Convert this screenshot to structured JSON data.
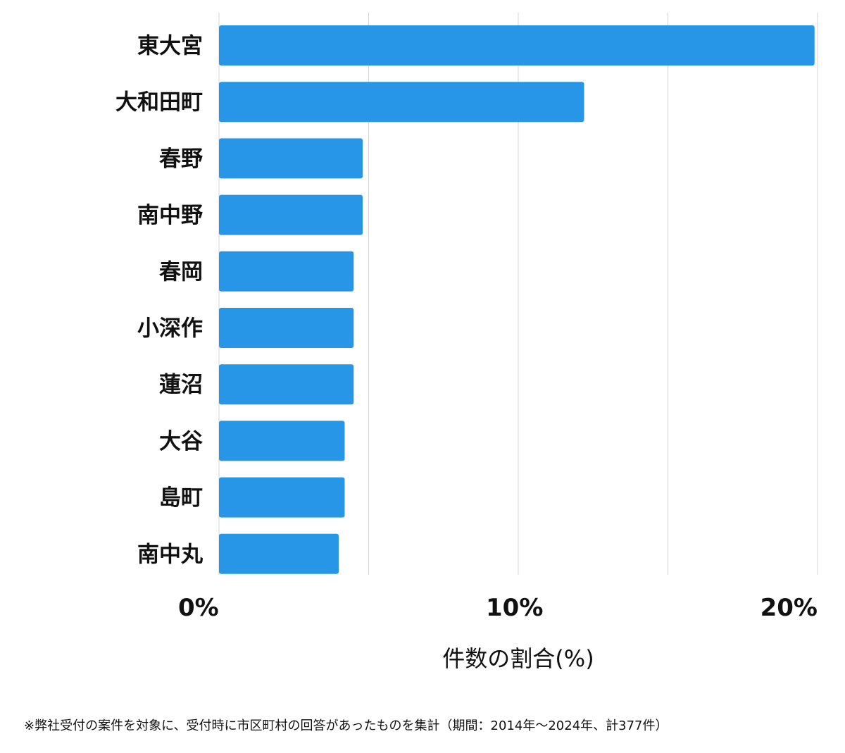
{
  "chart_data": {
    "type": "bar",
    "orientation": "horizontal",
    "categories": [
      "東大宮",
      "大和田町",
      "春野",
      "南中野",
      "春岡",
      "小深作",
      "蓮沼",
      "大谷",
      "島町",
      "南中丸"
    ],
    "values": [
      19.9,
      12.2,
      4.8,
      4.8,
      4.5,
      4.5,
      4.5,
      4.2,
      4.2,
      4.0
    ],
    "xlabel": "件数の割合(%)",
    "xlim": [
      0,
      20
    ],
    "xtick_values": [
      0,
      5,
      10,
      15,
      20
    ],
    "xtick_labels": [
      "0%",
      "",
      "10%",
      "",
      "20%"
    ],
    "grid": true,
    "bar_color": "#2896e6"
  },
  "footnote": "※弊社受付の案件を対象に、受付時に市区町村の回答があったものを集計（期間：2014年〜2024年、計377件）"
}
